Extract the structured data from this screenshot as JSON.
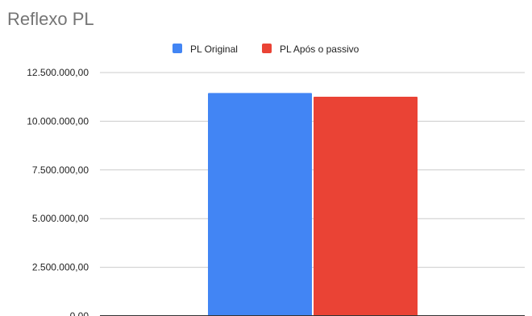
{
  "chart_data": {
    "type": "bar",
    "title": "Reflexo PL",
    "categories": [
      ""
    ],
    "series": [
      {
        "name": "PL Original",
        "values": [
          11450000
        ],
        "color": "#4285f4"
      },
      {
        "name": "PL Após o passivo",
        "values": [
          11260000
        ],
        "color": "#ea4335"
      }
    ],
    "yticks": [
      {
        "value": 0,
        "label": "0,00"
      },
      {
        "value": 2500000,
        "label": "2.500.000,00"
      },
      {
        "value": 5000000,
        "label": "5.000.000,00"
      },
      {
        "value": 7500000,
        "label": "7.500.000,00"
      },
      {
        "value": 10000000,
        "label": "10.000.000,00"
      },
      {
        "value": 12500000,
        "label": "12.500.000,00"
      }
    ],
    "ylim": [
      0,
      12500000
    ],
    "grid": true,
    "legend_position": "top-center",
    "xlabel": "",
    "ylabel": ""
  }
}
